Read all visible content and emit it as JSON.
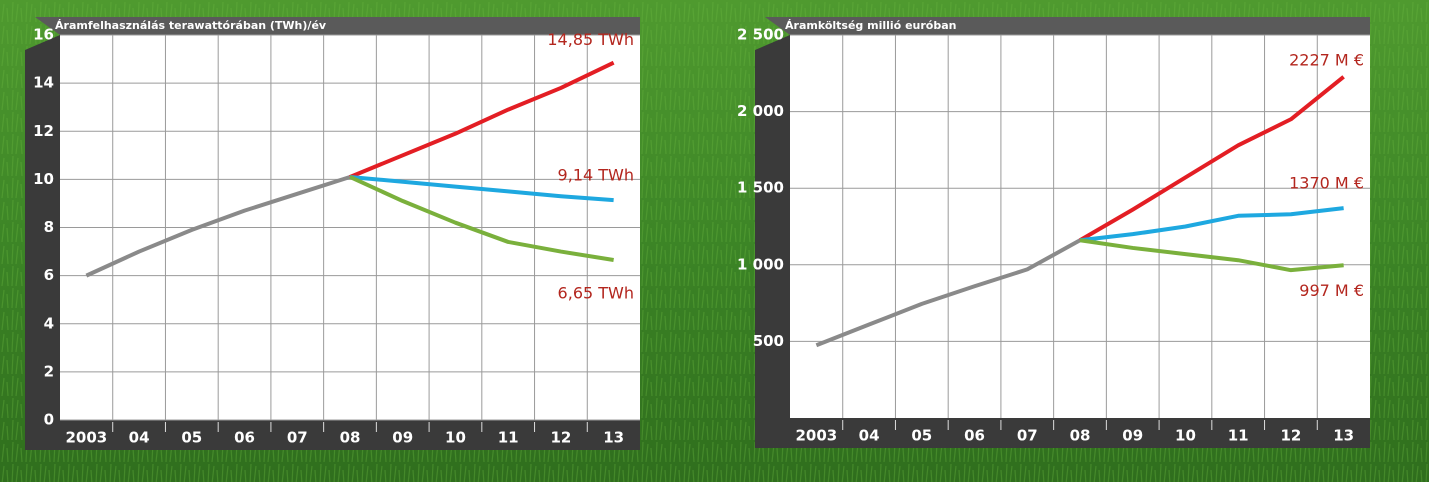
{
  "chart_data": [
    {
      "type": "line",
      "title": "Áramfelhasználás terawattórában (TWh)/év",
      "categories": [
        "2003",
        "04",
        "05",
        "06",
        "07",
        "08",
        "09",
        "10",
        "11",
        "12",
        "13"
      ],
      "ylim": [
        0,
        16
      ],
      "yticks": [
        0,
        2,
        4,
        6,
        8,
        10,
        12,
        14,
        16
      ],
      "grid": true,
      "series": [
        {
          "color": "#8a8a8a",
          "values": [
            6.0,
            7.0,
            7.9,
            8.7,
            9.4,
            10.1,
            null,
            null,
            null,
            null,
            null
          ]
        },
        {
          "color": "#e31e24",
          "values": [
            null,
            null,
            null,
            null,
            null,
            10.1,
            11.0,
            11.9,
            12.9,
            13.8,
            14.85
          ],
          "value_labels": [
            null,
            null,
            null,
            null,
            null,
            null,
            null,
            null,
            null,
            null,
            "14,85 TWh"
          ]
        },
        {
          "color": "#1ea8e0",
          "values": [
            null,
            null,
            null,
            null,
            null,
            10.1,
            9.9,
            9.7,
            9.5,
            9.3,
            9.14
          ],
          "value_labels": [
            null,
            null,
            null,
            null,
            null,
            null,
            null,
            null,
            null,
            null,
            "9,14 TWh"
          ]
        },
        {
          "color": "#7ab03c",
          "values": [
            null,
            null,
            null,
            null,
            null,
            10.1,
            9.1,
            8.2,
            7.4,
            7.0,
            6.65
          ],
          "value_labels": [
            null,
            null,
            null,
            null,
            null,
            null,
            null,
            null,
            null,
            null,
            "6,65 TWh"
          ]
        }
      ]
    },
    {
      "type": "line",
      "title": "Áramköltség millió euróban",
      "categories": [
        "2003",
        "04",
        "05",
        "06",
        "07",
        "08",
        "09",
        "10",
        "11",
        "12",
        "13"
      ],
      "ylim": [
        0,
        2500
      ],
      "yticks": [
        {
          "value": 500,
          "label": "500"
        },
        {
          "value": 1000,
          "label": "1 000"
        },
        {
          "value": 1500,
          "label": "1 500"
        },
        {
          "value": 2000,
          "label": "2 000"
        },
        {
          "value": 2500,
          "label": "2 500"
        }
      ],
      "grid": true,
      "series": [
        {
          "color": "#8a8a8a",
          "values": [
            475,
            610,
            745,
            860,
            970,
            1160,
            null,
            null,
            null,
            null,
            null
          ]
        },
        {
          "color": "#e31e24",
          "values": [
            null,
            null,
            null,
            null,
            null,
            1160,
            1360,
            1570,
            1780,
            1950,
            2227
          ],
          "value_labels": [
            null,
            null,
            null,
            null,
            null,
            null,
            null,
            null,
            null,
            null,
            "2227 M €"
          ]
        },
        {
          "color": "#1ea8e0",
          "values": [
            null,
            null,
            null,
            null,
            null,
            1160,
            1200,
            1250,
            1320,
            1330,
            1370
          ],
          "value_labels": [
            null,
            null,
            null,
            null,
            null,
            null,
            null,
            null,
            null,
            null,
            "1370 M €"
          ]
        },
        {
          "color": "#7ab03c",
          "values": [
            null,
            null,
            null,
            null,
            null,
            1160,
            1110,
            1070,
            1030,
            965,
            997
          ],
          "value_labels": [
            null,
            null,
            null,
            null,
            null,
            null,
            null,
            null,
            null,
            null,
            "997 M €"
          ]
        }
      ]
    }
  ]
}
